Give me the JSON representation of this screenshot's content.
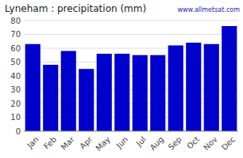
{
  "chart_data": {
    "type": "bar",
    "title": "Lyneham : precipitation (mm)",
    "annotation": "www.allmetsat.com",
    "categories": [
      "Jan",
      "Feb",
      "Mar",
      "Apr",
      "May",
      "Jun",
      "Jul",
      "Aug",
      "Sep",
      "Oct",
      "Nov",
      "Dec"
    ],
    "values": [
      63,
      48,
      58,
      45,
      56,
      56,
      55,
      55,
      62,
      64,
      63,
      76
    ],
    "color": "#0000CC",
    "ylim": [
      0,
      80
    ],
    "yticks": [
      0,
      10,
      20,
      30,
      40,
      50,
      60,
      70,
      80
    ],
    "grid": true
  }
}
